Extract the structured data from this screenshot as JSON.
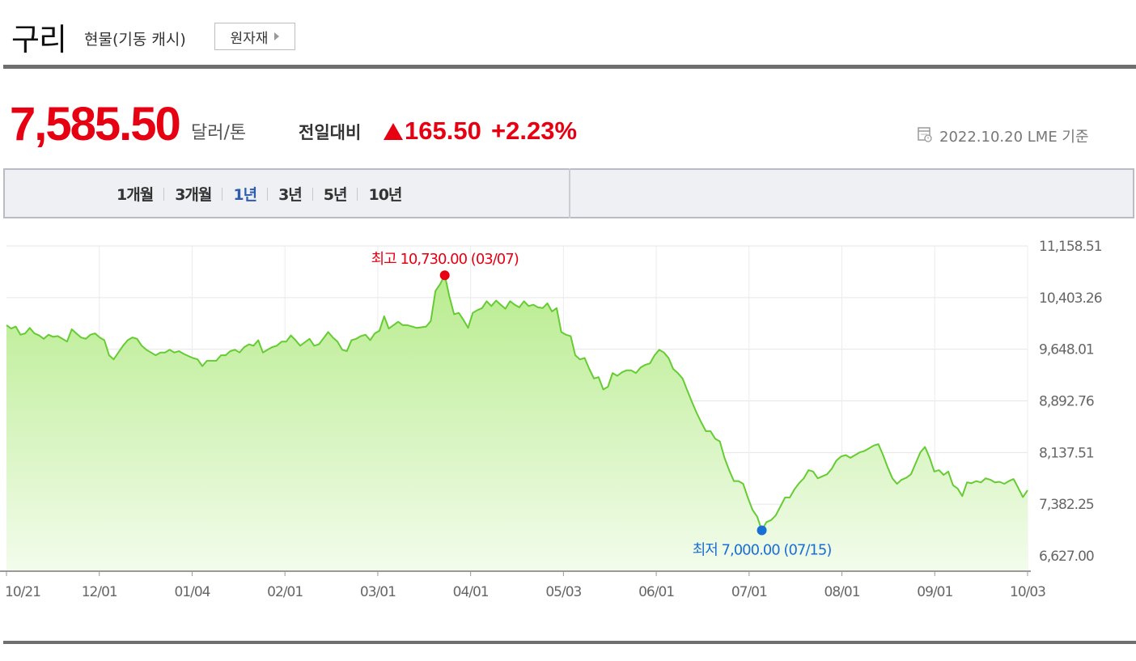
{
  "header": {
    "title": "구리",
    "subtitle": "현물(기동 캐시)",
    "category_button": "원자재"
  },
  "quote": {
    "price": "7,585.50",
    "unit": "달러/톤",
    "change_label": "전일대비",
    "change_value": "165.50",
    "change_pct": "+2.23%",
    "date_text": "2022.10.20 LME 기준",
    "up_color": "#e60012"
  },
  "periods": [
    {
      "label": "1개월",
      "active": false
    },
    {
      "label": "3개월",
      "active": false
    },
    {
      "label": "1년",
      "active": true
    },
    {
      "label": "3년",
      "active": false
    },
    {
      "label": "5년",
      "active": false
    },
    {
      "label": "10년",
      "active": false
    }
  ],
  "chart_data": {
    "type": "area",
    "line_color": "#66cc33",
    "fill_top": "#b8ec8e",
    "fill_bottom": "#f3fcec",
    "ylim": [
      6627.0,
      11158.51
    ],
    "y_ticks": [
      "11,158.51",
      "10,403.26",
      "9,648.01",
      "8,892.76",
      "8,137.51",
      "7,382.25",
      "6,627.00"
    ],
    "x_ticks": [
      "10/21",
      "12/01",
      "01/04",
      "02/01",
      "03/01",
      "04/01",
      "05/03",
      "06/01",
      "07/01",
      "08/01",
      "09/01",
      "10/03"
    ],
    "annotations": {
      "high_label": "최고 10,730.00 (03/07)",
      "high_color": "#e60012",
      "high_value": 10730.0,
      "low_label": "최저 7,000.00 (07/15)",
      "low_color": "#1a6fd6",
      "low_value": 7000.0
    },
    "series": [
      {
        "values": [
          10000,
          9950,
          9980,
          9860,
          9880,
          9960,
          9880,
          9850,
          9800,
          9860,
          9830,
          9840,
          9800,
          9760,
          9940,
          9880,
          9820,
          9800,
          9860,
          9880,
          9820,
          9780,
          9560,
          9500,
          9600,
          9700,
          9780,
          9820,
          9800,
          9700,
          9640,
          9600,
          9560,
          9600,
          9600,
          9640,
          9600,
          9620,
          9580,
          9550,
          9520,
          9500,
          9400,
          9480,
          9480,
          9480,
          9560,
          9560,
          9620,
          9640,
          9600,
          9680,
          9720,
          9700,
          9780,
          9600,
          9640,
          9680,
          9700,
          9760,
          9760,
          9850,
          9780,
          9700,
          9750,
          9800,
          9700,
          9720,
          9810,
          9900,
          9820,
          9760,
          9640,
          9620,
          9780,
          9800,
          9840,
          9860,
          9780,
          9880,
          9920,
          10130,
          9950,
          10000,
          10050,
          10000,
          10000,
          9980,
          9960,
          9970,
          9980,
          10060,
          10500,
          10600,
          10730,
          10420,
          10160,
          10180,
          10080,
          9960,
          10180,
          10220,
          10250,
          10350,
          10280,
          10360,
          10300,
          10240,
          10350,
          10300,
          10260,
          10350,
          10280,
          10300,
          10260,
          10250,
          10320,
          10200,
          10250,
          9900,
          9860,
          9840,
          9560,
          9500,
          9520,
          9360,
          9220,
          9240,
          9060,
          9100,
          9300,
          9260,
          9310,
          9340,
          9340,
          9300,
          9380,
          9420,
          9440,
          9560,
          9640,
          9600,
          9520,
          9360,
          9300,
          9220,
          9050,
          8880,
          8720,
          8580,
          8450,
          8450,
          8340,
          8300,
          8060,
          7880,
          7720,
          7720,
          7680,
          7480,
          7300,
          7200,
          7000,
          7120,
          7150,
          7220,
          7350,
          7480,
          7480,
          7600,
          7690,
          7760,
          7880,
          7860,
          7760,
          7790,
          7820,
          7900,
          8020,
          8080,
          8100,
          8060,
          8100,
          8140,
          8160,
          8200,
          8240,
          8260,
          8100,
          7920,
          7760,
          7680,
          7740,
          7770,
          7820,
          7980,
          8140,
          8220,
          8060,
          7860,
          7880,
          7810,
          7860,
          7660,
          7610,
          7500,
          7700,
          7690,
          7720,
          7700,
          7760,
          7740,
          7700,
          7710,
          7680,
          7720,
          7750,
          7620,
          7486,
          7585.5
        ]
      }
    ]
  }
}
